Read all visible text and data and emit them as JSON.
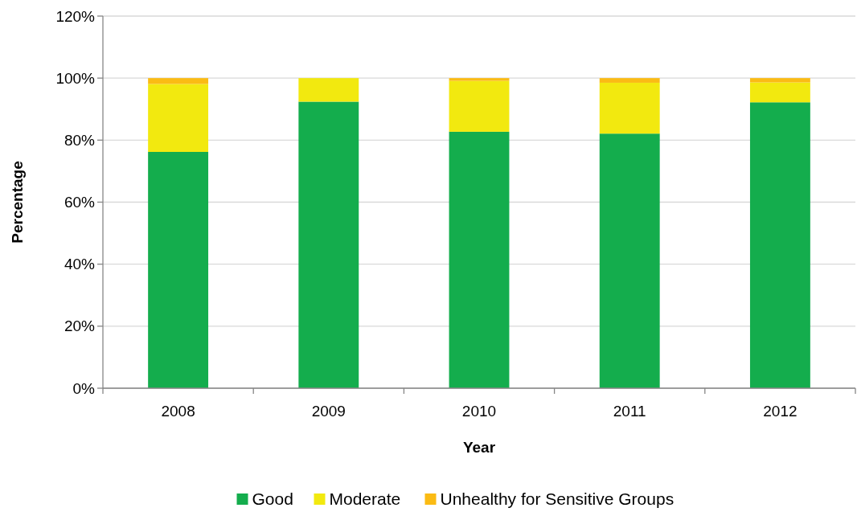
{
  "chart_data": {
    "type": "bar",
    "stacked": true,
    "xlabel": "Year",
    "ylabel": "Percentage",
    "categories": [
      "2008",
      "2009",
      "2010",
      "2011",
      "2012"
    ],
    "series": [
      {
        "name": "Good",
        "color": "#14ad4d",
        "values": [
          76.2,
          92.4,
          82.7,
          82.1,
          92.2
        ]
      },
      {
        "name": "Moderate",
        "color": "#f2e90f",
        "values": [
          21.9,
          7.6,
          16.4,
          16.4,
          6.4
        ]
      },
      {
        "name": "Unhealthy for Sensitive Groups",
        "color": "#fbbb14",
        "values": [
          1.9,
          0,
          0.9,
          1.5,
          1.4
        ]
      }
    ],
    "ylim": [
      0,
      120
    ],
    "yticks": [
      {
        "value": 0,
        "label": "0%"
      },
      {
        "value": 20,
        "label": "20%"
      },
      {
        "value": 40,
        "label": "40%"
      },
      {
        "value": 60,
        "label": "60%"
      },
      {
        "value": 80,
        "label": "80%"
      },
      {
        "value": 100,
        "label": "100%"
      },
      {
        "value": 120,
        "label": "120%"
      }
    ],
    "grid": "y",
    "legend": "bottom"
  }
}
